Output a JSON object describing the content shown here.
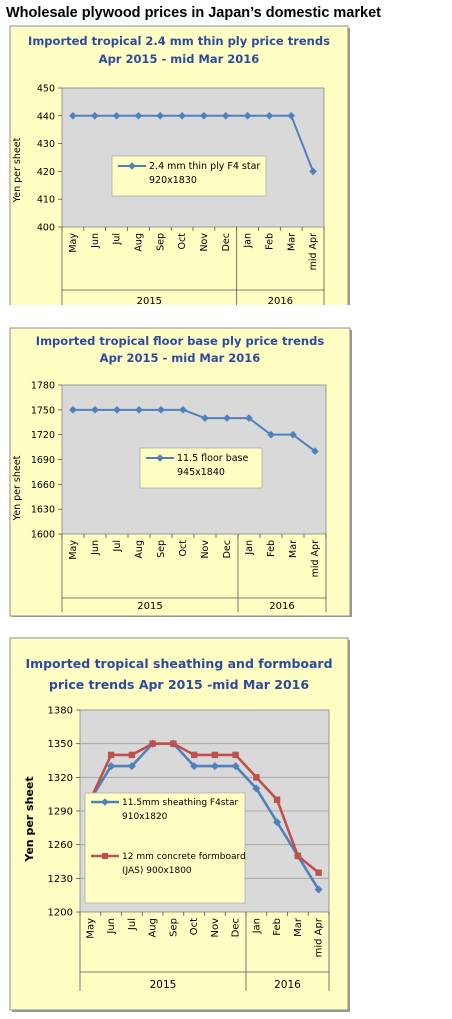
{
  "page_title": "Wholesale plywood prices in Japan’s domestic market",
  "chart_data": [
    {
      "type": "line",
      "title": [
        "Imported tropical 2.4 mm thin ply price trends",
        "Apr 2015 - mid Mar 2016"
      ],
      "ylabel": "Yen per sheet",
      "ylim": [
        400,
        450
      ],
      "yticks": [
        400,
        410,
        420,
        430,
        440,
        450
      ],
      "categories": [
        "May",
        "Jun",
        "Jul",
        "Aug",
        "Sep",
        "Oct",
        "Nov",
        "Dec",
        "Jan",
        "Feb",
        "Mar",
        "mid Apr"
      ],
      "year_groups": [
        {
          "label": "2015",
          "count": 8
        },
        {
          "label": "2016",
          "count": 4
        }
      ],
      "series": [
        {
          "name": [
            "2.4 mm thin ply F4 star",
            "920x1830"
          ],
          "color": "#4f81bd",
          "marker": "diamond",
          "values": [
            440,
            440,
            440,
            440,
            440,
            440,
            440,
            440,
            440,
            440,
            440,
            420
          ]
        }
      ],
      "grid": false,
      "legend": "center"
    },
    {
      "type": "line",
      "title": [
        "Imported tropical floor base ply price trends",
        "Apr 2015 - mid Mar 2016"
      ],
      "ylabel": "Yen per sheet",
      "ylim": [
        1600,
        1780
      ],
      "yticks": [
        1600,
        1630,
        1660,
        1690,
        1720,
        1750,
        1780
      ],
      "categories": [
        "May",
        "Jun",
        "Jul",
        "Aug",
        "Sep",
        "Oct",
        "Nov",
        "Dec",
        "Jan",
        "Feb",
        "Mar",
        "mid Apr"
      ],
      "year_groups": [
        {
          "label": "2015",
          "count": 8
        },
        {
          "label": "2016",
          "count": 4
        }
      ],
      "series": [
        {
          "name": [
            "11.5 floor base",
            "945x1840"
          ],
          "color": "#4f81bd",
          "marker": "diamond",
          "values": [
            1750,
            1750,
            1750,
            1750,
            1750,
            1750,
            1740,
            1740,
            1740,
            1720,
            1720,
            1700
          ]
        }
      ],
      "grid": false,
      "legend": "center"
    },
    {
      "type": "line",
      "title": [
        "Imported tropical sheathing and formboard",
        "price trends Apr 2015 -mid Mar 2016"
      ],
      "ylabel": "Yen per sheet",
      "ylim": [
        1200,
        1380
      ],
      "yticks": [
        1200,
        1230,
        1260,
        1290,
        1320,
        1350,
        1380
      ],
      "categories": [
        "May",
        "Jun",
        "Jul",
        "Aug",
        "Sep",
        "Oct",
        "Nov",
        "Dec",
        "Jan",
        "Feb",
        "Mar",
        "mid Apr"
      ],
      "year_groups": [
        {
          "label": "2015",
          "count": 8
        },
        {
          "label": "2016",
          "count": 4
        }
      ],
      "series": [
        {
          "name": [
            "11.5mm sheathing F4star",
            "910x1820"
          ],
          "color": "#4f81bd",
          "marker": "diamond",
          "values": [
            1300,
            1330,
            1330,
            1350,
            1350,
            1330,
            1330,
            1330,
            1310,
            1280,
            1250,
            1220
          ]
        },
        {
          "name": [
            "12 mm concrete formboard",
            "(JAS) 900x1800"
          ],
          "color": "#c0504d",
          "marker": "square",
          "values": [
            1300,
            1340,
            1340,
            1350,
            1350,
            1340,
            1340,
            1340,
            1320,
            1300,
            1250,
            1235
          ]
        }
      ],
      "grid": true,
      "legend": "left"
    }
  ]
}
